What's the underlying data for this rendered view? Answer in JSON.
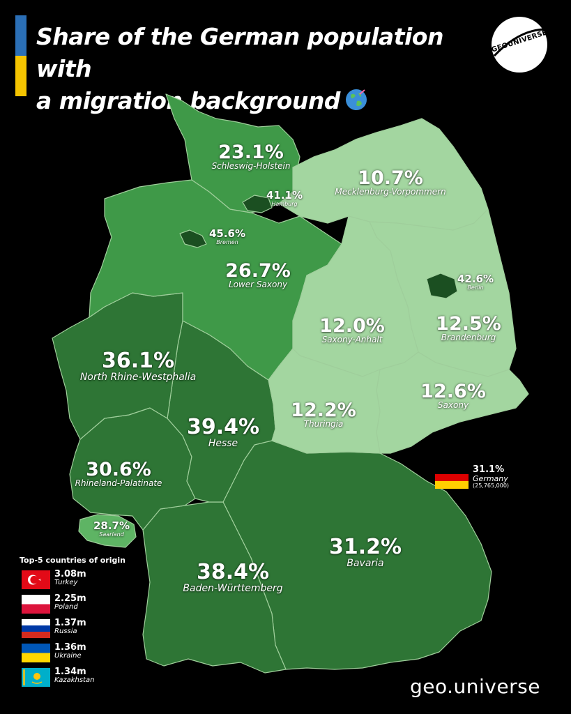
{
  "title": {
    "line1": "Share of the German population with",
    "line2": "a migration background"
  },
  "logo": {
    "text": "GEOUNIVERSE"
  },
  "colors": {
    "dark": "#2e7535",
    "mid": "#3f9948",
    "light": "#5eb464",
    "pale": "#a3d6a0",
    "city": "#1b4f21",
    "border": "#9fce9b"
  },
  "states": {
    "schleswig_holstein": {
      "pct": "23.1%",
      "name": "Schleswig-Holstein"
    },
    "hamburg": {
      "pct": "41.1%",
      "name": "Hamburg"
    },
    "mecklenburg": {
      "pct": "10.7%",
      "name": "Mecklenburg-Vorpommern"
    },
    "bremen": {
      "pct": "45.6%",
      "name": "Bremen"
    },
    "lower_saxony": {
      "pct": "26.7%",
      "name": "Lower Saxony"
    },
    "berlin": {
      "pct": "42.6%",
      "name": "Berlin"
    },
    "saxony_anhalt": {
      "pct": "12.0%",
      "name": "Saxony-Anhalt"
    },
    "brandenburg": {
      "pct": "12.5%",
      "name": "Brandenburg"
    },
    "nrw": {
      "pct": "36.1%",
      "name": "North Rhine-Westphalia"
    },
    "saxony": {
      "pct": "12.6%",
      "name": "Saxony"
    },
    "thuringia": {
      "pct": "12.2%",
      "name": "Thuringia"
    },
    "hesse": {
      "pct": "39.4%",
      "name": "Hesse"
    },
    "rhineland": {
      "pct": "30.6%",
      "name": "Rhineland-Palatinate"
    },
    "saarland": {
      "pct": "28.7%",
      "name": "Saarland"
    },
    "bavaria": {
      "pct": "31.2%",
      "name": "Bavaria"
    },
    "bw": {
      "pct": "38.4%",
      "name": "Baden-Württemberg"
    }
  },
  "germany": {
    "pct": "31.1%",
    "name": "Germany",
    "population": "(25,765,000)"
  },
  "top5": {
    "heading": "Top-5 countries of origin",
    "items": [
      {
        "value": "3.08m",
        "country": "Turkey",
        "flag": "turkey-flag-icon"
      },
      {
        "value": "2.25m",
        "country": "Poland",
        "flag": "poland-flag-icon"
      },
      {
        "value": "1.37m",
        "country": "Russia",
        "flag": "russia-flag-icon"
      },
      {
        "value": "1.36m",
        "country": "Ukraine",
        "flag": "ukraine-flag-icon"
      },
      {
        "value": "1.34m",
        "country": "Kazakhstan",
        "flag": "kazakhstan-flag-icon"
      }
    ]
  },
  "footer": "geo.universe"
}
